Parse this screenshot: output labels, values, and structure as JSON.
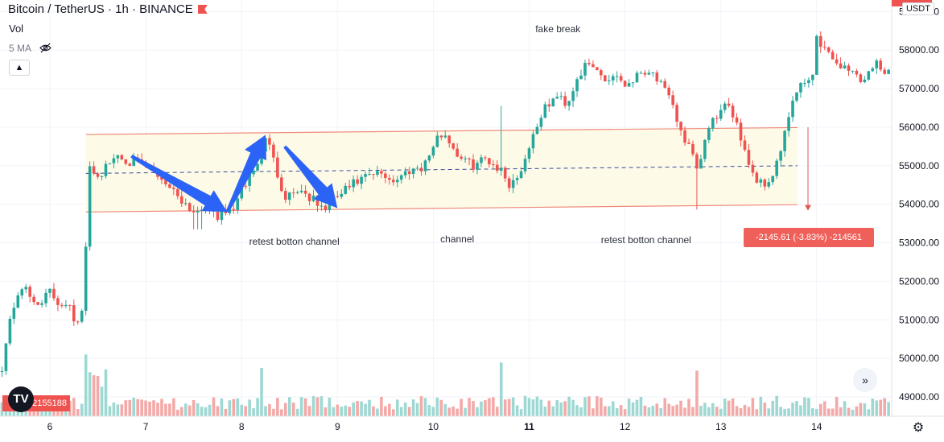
{
  "header": {
    "symbol": "Bitcoin / TetherUS · 1h · BINANCE",
    "indicator": "Vol",
    "ma": "5 MA",
    "collapse_icon": "chevron-up-icon",
    "currency": "USDT",
    "logo_text": "TV",
    "volume_badge": "2​​155188"
  },
  "annotations": {
    "top": "fake break",
    "left": "retest botton channel",
    "middle": "channel",
    "right": "retest botton channel"
  },
  "measure_label": "-2145.61 (-3.83%) -214561",
  "colors": {
    "up": "#26a69a",
    "down": "#ef5350",
    "vol_up": "#9ed8d2",
    "vol_down": "#f3a9a7",
    "channel_fill": "#fdfbe6",
    "channel_line": "#f08a7a",
    "midline": "#3c4a9b",
    "arrow": "#2b63f6",
    "measure": "#e05a55"
  },
  "chart_data": {
    "type": "candlestick",
    "symbol": "BTCUSDT",
    "interval": "1h",
    "exchange": "BINANCE",
    "price_axis": {
      "min": 48750,
      "max": 59300,
      "ticks": [
        49000,
        50000,
        51000,
        52000,
        53000,
        54000,
        55000,
        56000,
        57000,
        58000,
        59000
      ],
      "tick_labels": [
        "49000.00",
        "50000.00",
        "51000.00",
        "52000.00",
        "53000.00",
        "54000.00",
        "55000.00",
        "56000.00",
        "57000.00",
        "58000.00",
        "59000.00"
      ]
    },
    "time_axis": {
      "labels": [
        "6",
        "7",
        "8",
        "9",
        "10",
        "11",
        "12",
        "13",
        "14"
      ],
      "day_index": [
        0,
        1,
        2,
        3,
        4,
        5,
        6,
        7,
        8
      ]
    },
    "channel": {
      "upper": [
        [
          0.375,
          55810
        ],
        [
          7.8,
          55990
        ]
      ],
      "lower": [
        [
          0.375,
          53800
        ],
        [
          7.8,
          53990
        ]
      ],
      "mid": [
        [
          0.375,
          54800
        ],
        [
          7.8,
          55000
        ]
      ]
    },
    "measure": {
      "from": 56000,
      "to": 53854,
      "label": "-2145.61 (-3.83%) -214561"
    },
    "key_points": [
      [
        -0.5,
        49800
      ],
      [
        -0.4,
        51200
      ],
      [
        -0.3,
        51900
      ],
      [
        -0.15,
        51400
      ],
      [
        0.0,
        51700
      ],
      [
        0.1,
        51400
      ],
      [
        0.2,
        51500
      ],
      [
        0.28,
        50800
      ],
      [
        0.33,
        51100
      ],
      [
        0.38,
        53000
      ],
      [
        0.42,
        55100
      ],
      [
        0.5,
        54700
      ],
      [
        0.6,
        55000
      ],
      [
        0.7,
        55300
      ],
      [
        0.85,
        55100
      ],
      [
        1.0,
        55000
      ],
      [
        1.2,
        54600
      ],
      [
        1.35,
        54200
      ],
      [
        1.5,
        53800
      ],
      [
        1.62,
        54000
      ],
      [
        1.75,
        53700
      ],
      [
        1.9,
        53850
      ],
      [
        2.05,
        54600
      ],
      [
        2.2,
        55200
      ],
      [
        2.25,
        55800
      ],
      [
        2.35,
        55000
      ],
      [
        2.45,
        54200
      ],
      [
        2.6,
        54400
      ],
      [
        2.75,
        54100
      ],
      [
        2.85,
        53850
      ],
      [
        3.0,
        54200
      ],
      [
        3.15,
        54500
      ],
      [
        3.3,
        54700
      ],
      [
        3.45,
        54800
      ],
      [
        3.6,
        54600
      ],
      [
        3.75,
        54900
      ],
      [
        3.9,
        55000
      ],
      [
        4.0,
        55500
      ],
      [
        4.1,
        55900
      ],
      [
        4.25,
        55300
      ],
      [
        4.4,
        55000
      ],
      [
        4.55,
        55200
      ],
      [
        4.7,
        54900
      ],
      [
        4.8,
        54500
      ],
      [
        4.9,
        54800
      ],
      [
        5.0,
        55500
      ],
      [
        5.1,
        56200
      ],
      [
        5.2,
        56600
      ],
      [
        5.3,
        56800
      ],
      [
        5.4,
        56600
      ],
      [
        5.5,
        57300
      ],
      [
        5.6,
        57600
      ],
      [
        5.7,
        57500
      ],
      [
        5.8,
        57200
      ],
      [
        5.9,
        57400
      ],
      [
        6.0,
        57100
      ],
      [
        6.1,
        57300
      ],
      [
        6.2,
        57500
      ],
      [
        6.3,
        57400
      ],
      [
        6.4,
        57000
      ],
      [
        6.5,
        56500
      ],
      [
        6.6,
        55800
      ],
      [
        6.7,
        55300
      ],
      [
        6.75,
        54800
      ],
      [
        6.85,
        55800
      ],
      [
        6.95,
        56300
      ],
      [
        7.05,
        56500
      ],
      [
        7.15,
        56300
      ],
      [
        7.25,
        55400
      ],
      [
        7.35,
        54700
      ],
      [
        7.45,
        54500
      ],
      [
        7.55,
        54800
      ],
      [
        7.65,
        55600
      ],
      [
        7.75,
        56700
      ],
      [
        7.85,
        57100
      ],
      [
        7.95,
        57300
      ],
      [
        8.0,
        58300
      ],
      [
        8.1,
        58000
      ],
      [
        8.2,
        57700
      ],
      [
        8.3,
        57500
      ],
      [
        8.4,
        57400
      ],
      [
        8.5,
        57200
      ],
      [
        8.6,
        57700
      ],
      [
        8.7,
        57500
      ]
    ],
    "volume": {
      "approx_range": [
        0,
        1200
      ],
      "notable_spikes": [
        [
          0.38,
          1150
        ],
        [
          2.22,
          900
        ],
        [
          4.7,
          1000
        ],
        [
          6.75,
          850
        ]
      ]
    }
  }
}
